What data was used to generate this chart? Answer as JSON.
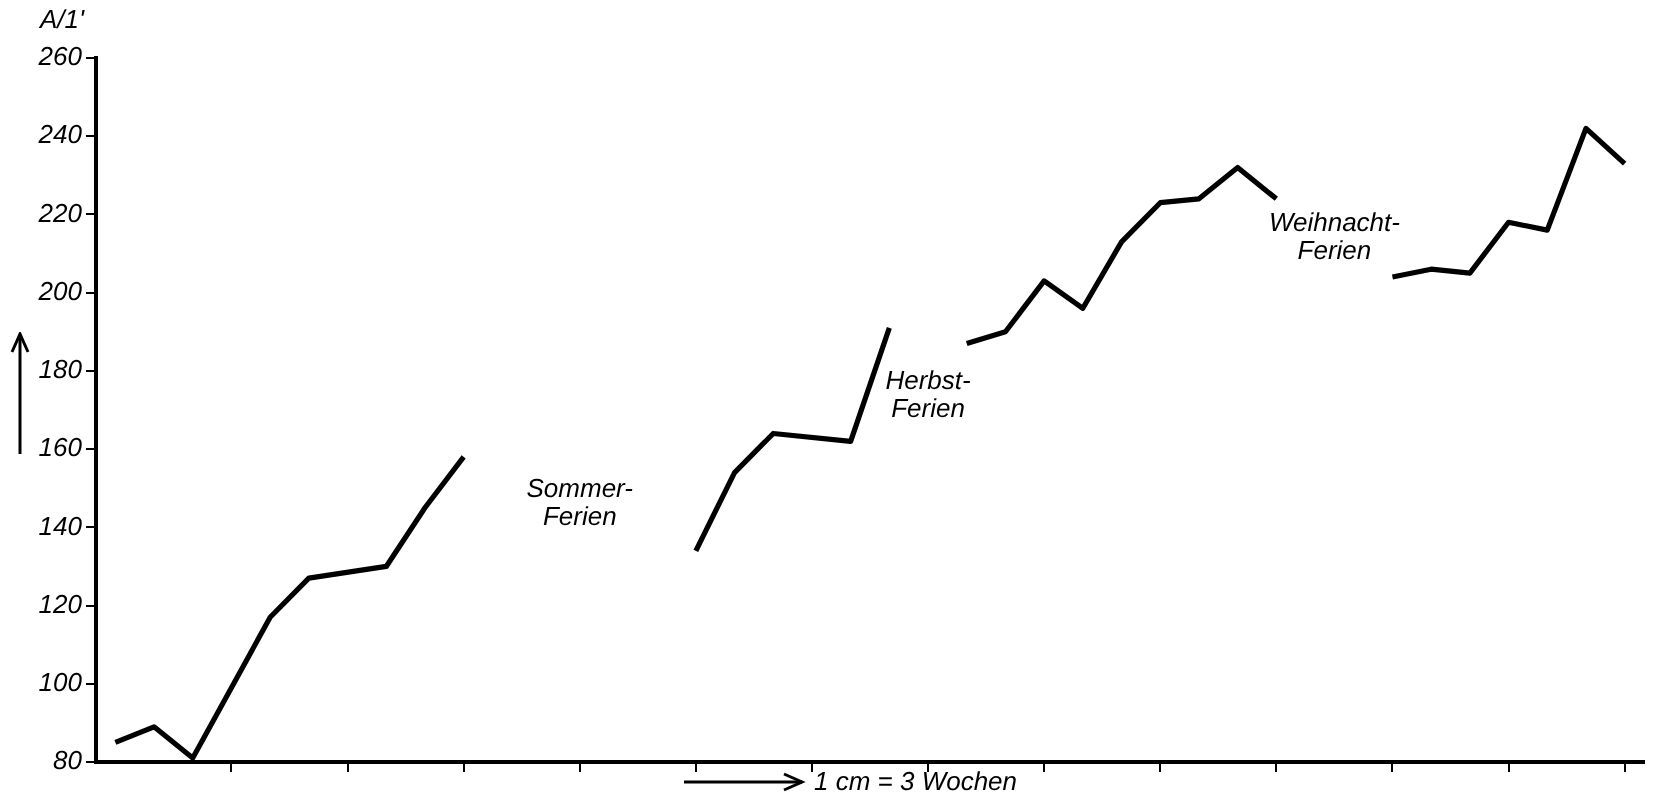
{
  "chart_data": {
    "type": "line",
    "xlabel": "1 cm = 3 Wochen",
    "ylabel": "A/1'",
    "categories": [
      null,
      null,
      null,
      null,
      null,
      null,
      null,
      null,
      null,
      null,
      null,
      null,
      null,
      null,
      null,
      null,
      null,
      null,
      null,
      null,
      null,
      null,
      null,
      null,
      null,
      null,
      null,
      null,
      null,
      null,
      null,
      null,
      null,
      null,
      null,
      null,
      null,
      null,
      null,
      null
    ],
    "series": [
      {
        "color": "#000000",
        "values": [
          85,
          89,
          81,
          null,
          117,
          127,
          null,
          130,
          145,
          158,
          null,
          null,
          null,
          null,
          null,
          null,
          null,
          null,
          null,
          null,
          null,
          null,
          null,
          null,
          null,
          null,
          null,
          null,
          null,
          null,
          null,
          null,
          null,
          null,
          null,
          null,
          null,
          null,
          null,
          null
        ]
      },
      {
        "color": "#000000",
        "values": [
          null,
          null,
          null,
          null,
          null,
          null,
          null,
          null,
          null,
          null,
          null,
          null,
          null,
          null,
          null,
          134,
          154,
          164,
          null,
          162,
          191,
          null,
          null,
          null,
          null,
          null,
          null,
          null,
          null,
          null,
          null,
          null,
          null,
          null,
          null,
          null,
          null,
          null,
          null,
          null
        ]
      },
      {
        "color": "#000000",
        "values": [
          null,
          null,
          null,
          null,
          null,
          null,
          null,
          null,
          null,
          null,
          null,
          null,
          null,
          null,
          null,
          null,
          null,
          null,
          null,
          null,
          null,
          null,
          187,
          190,
          203,
          196,
          213,
          223,
          224,
          232,
          224,
          null,
          null,
          null,
          null,
          null,
          null,
          null,
          null,
          null
        ]
      },
      {
        "color": "#000000",
        "values": [
          null,
          null,
          null,
          null,
          null,
          null,
          null,
          null,
          null,
          null,
          null,
          null,
          null,
          null,
          null,
          null,
          null,
          null,
          null,
          null,
          null,
          null,
          null,
          null,
          null,
          null,
          null,
          null,
          null,
          null,
          null,
          null,
          null,
          204,
          206,
          205,
          218,
          216,
          242,
          233
        ]
      }
    ],
    "ylim": [
      80,
      260
    ],
    "yticks": [
      80,
      100,
      120,
      140,
      160,
      180,
      200,
      220,
      240,
      260
    ],
    "tick_labels": "y",
    "grid": false,
    "legend": false,
    "marker": "none",
    "line_style": "solid",
    "annotations": [
      "Sommer-\nFerien",
      "Herbst-\nFerien",
      "Weihnacht-\nFerien"
    ]
  }
}
